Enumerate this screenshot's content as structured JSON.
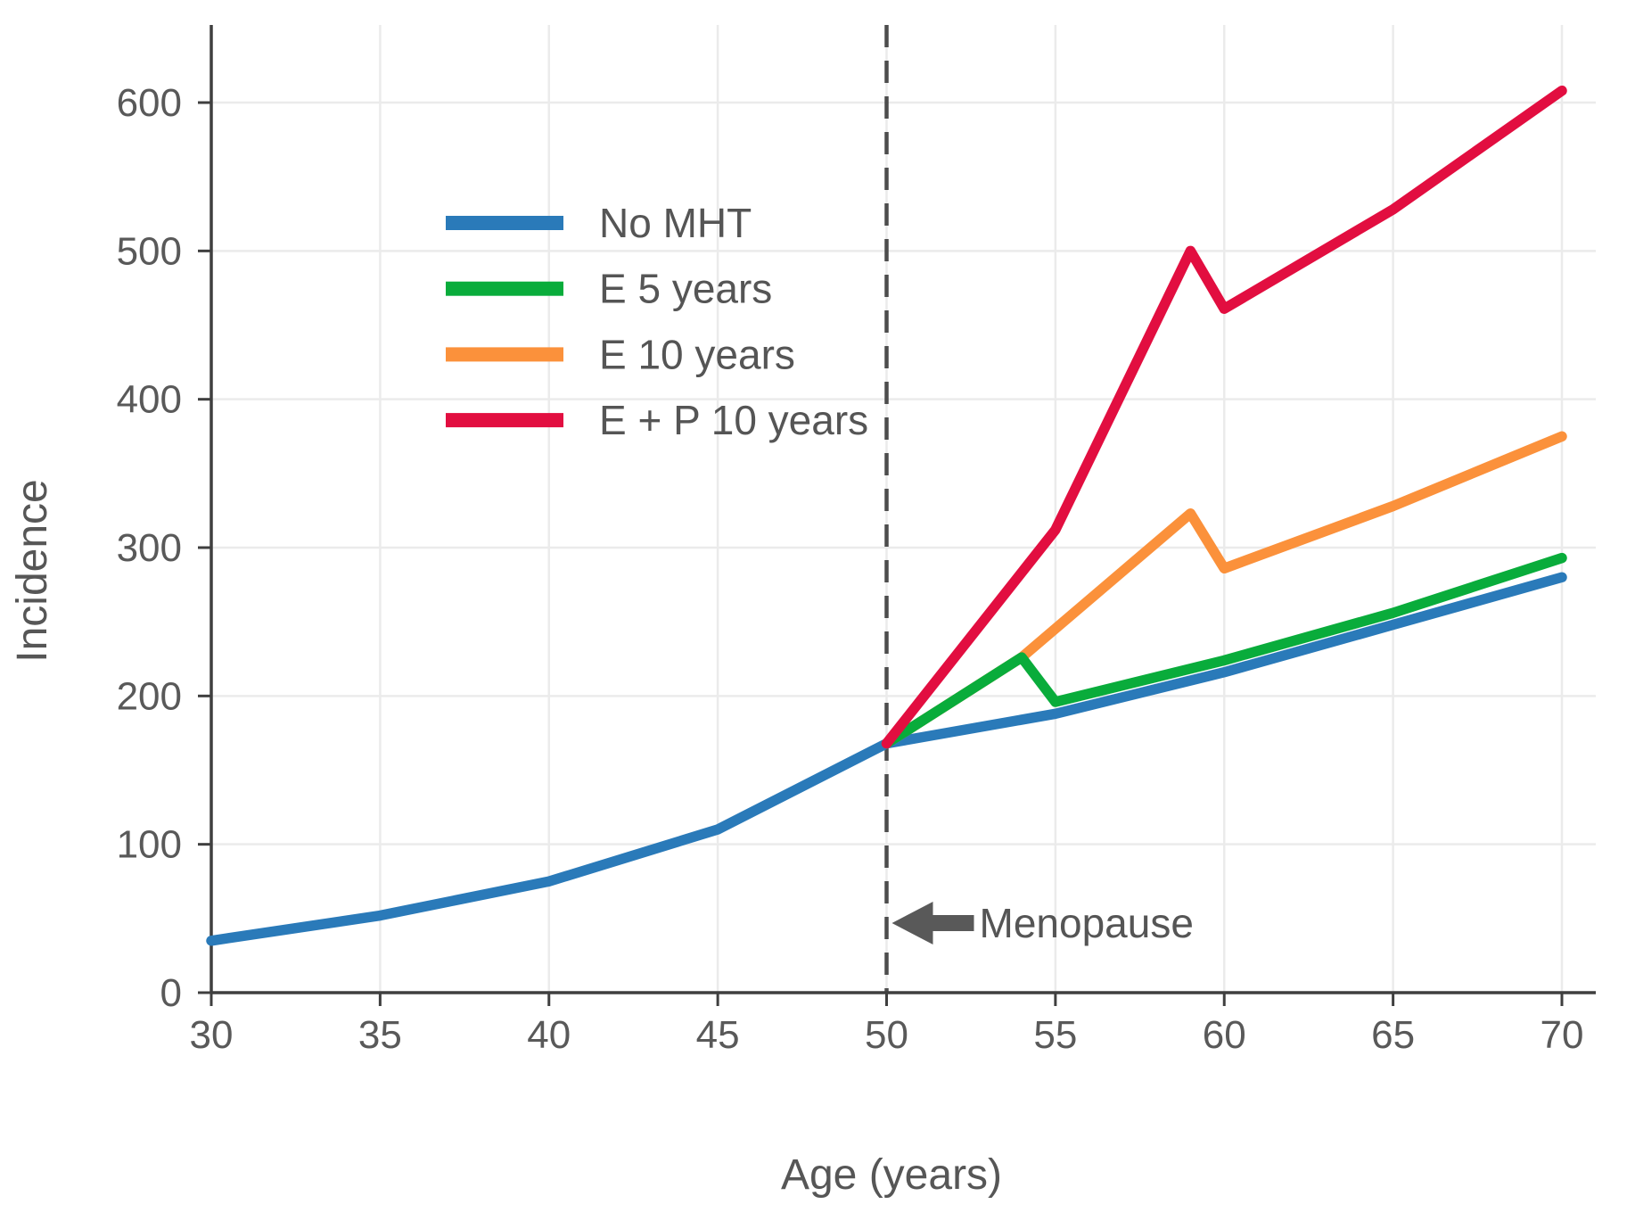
{
  "chart_data": {
    "type": "line",
    "title": "",
    "xlabel": "Age (years)",
    "ylabel": "Incidence",
    "xlim": [
      30,
      70
    ],
    "ylim": [
      0,
      650
    ],
    "x_ticks": [
      30,
      35,
      40,
      45,
      50,
      55,
      60,
      65,
      70
    ],
    "y_ticks": [
      0,
      100,
      200,
      300,
      400,
      500,
      600
    ],
    "grid": true,
    "legend_position": "upper-left-inside",
    "series": [
      {
        "name": "No MHT",
        "color": "#2A7AB9",
        "points": [
          [
            30,
            35
          ],
          [
            35,
            52
          ],
          [
            40,
            75
          ],
          [
            45,
            110
          ],
          [
            50,
            168
          ],
          [
            55,
            188
          ],
          [
            60,
            216
          ],
          [
            65,
            248
          ],
          [
            70,
            280
          ]
        ]
      },
      {
        "name": "E 5 years",
        "color": "#09AC3B",
        "points": [
          [
            50,
            168
          ],
          [
            54,
            226
          ],
          [
            55,
            196
          ],
          [
            60,
            224
          ],
          [
            65,
            256
          ],
          [
            70,
            293
          ]
        ]
      },
      {
        "name": "E 10 years",
        "color": "#FB913B",
        "points": [
          [
            50,
            168
          ],
          [
            54,
            226
          ],
          [
            59,
            323
          ],
          [
            60,
            286
          ],
          [
            65,
            328
          ],
          [
            70,
            375
          ]
        ]
      },
      {
        "name": "E + P 10 years",
        "color": "#E20E40",
        "points": [
          [
            50,
            168
          ],
          [
            55,
            312
          ],
          [
            59,
            500
          ],
          [
            60,
            461
          ],
          [
            65,
            528
          ],
          [
            70,
            608
          ]
        ]
      }
    ],
    "draw_order": [
      0,
      2,
      1,
      3
    ],
    "annotation": {
      "text": "Menopause",
      "x": 50,
      "y": 48,
      "arrow": "left"
    },
    "reference_line": {
      "x": 50,
      "style": "dashed",
      "color": "#4D4D4D"
    }
  },
  "colors": {
    "grid": "#EBEBEB",
    "axis": "#3F3F3F",
    "tick_label": "#595959",
    "axis_title": "#565656",
    "annotation_text": "#555555",
    "arrow": "#595959",
    "background": "#FFFFFF"
  }
}
